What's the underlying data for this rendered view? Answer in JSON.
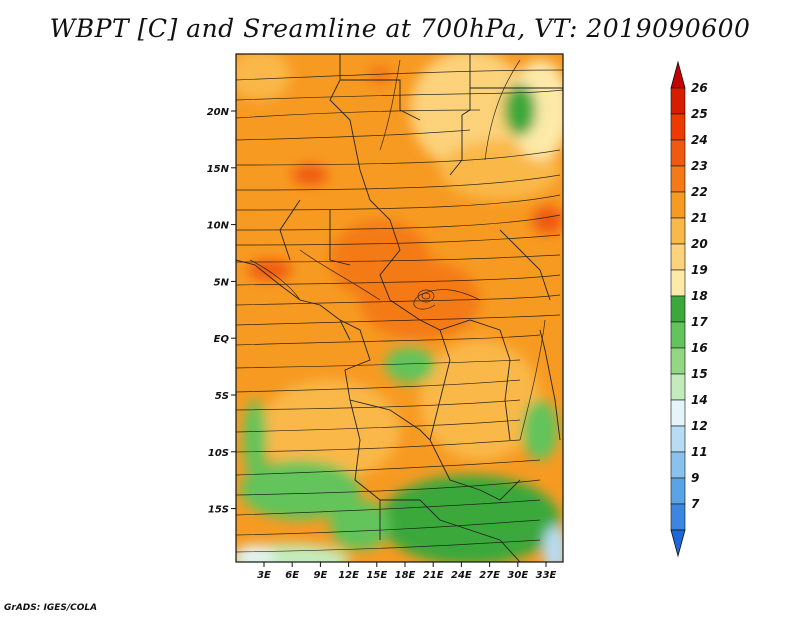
{
  "title": "WBPT [C] and Sreamline at 700hPa, VT: 2019090600",
  "credit": "GrADS: IGES/COLA",
  "map": {
    "lat_ticks": [
      "20N",
      "15N",
      "10N",
      "5N",
      "EQ",
      "5S",
      "10S",
      "15S"
    ],
    "lon_ticks": [
      "3E",
      "6E",
      "9E",
      "12E",
      "15E",
      "18E",
      "21E",
      "24E",
      "27E",
      "30E",
      "33E"
    ],
    "field": "Wet-bulb potential temperature",
    "level": "700hPa"
  },
  "colorbar": {
    "labels": [
      "26",
      "25",
      "24",
      "23",
      "22",
      "21",
      "20",
      "19",
      "18",
      "17",
      "16",
      "15",
      "14",
      "12",
      "11",
      "9",
      "7"
    ],
    "colors": [
      "#c40000",
      "#d81c00",
      "#ec3a00",
      "#f05a10",
      "#f47a18",
      "#f79a22",
      "#fab84a",
      "#fcd27a",
      "#fde9a8",
      "#3aa83a",
      "#62c45a",
      "#92d884",
      "#c2ecbc",
      "#e4f4f8",
      "#b8dcf4",
      "#8ac2ee",
      "#5aa4e6",
      "#3a86e0",
      "#1f66d8"
    ]
  }
}
